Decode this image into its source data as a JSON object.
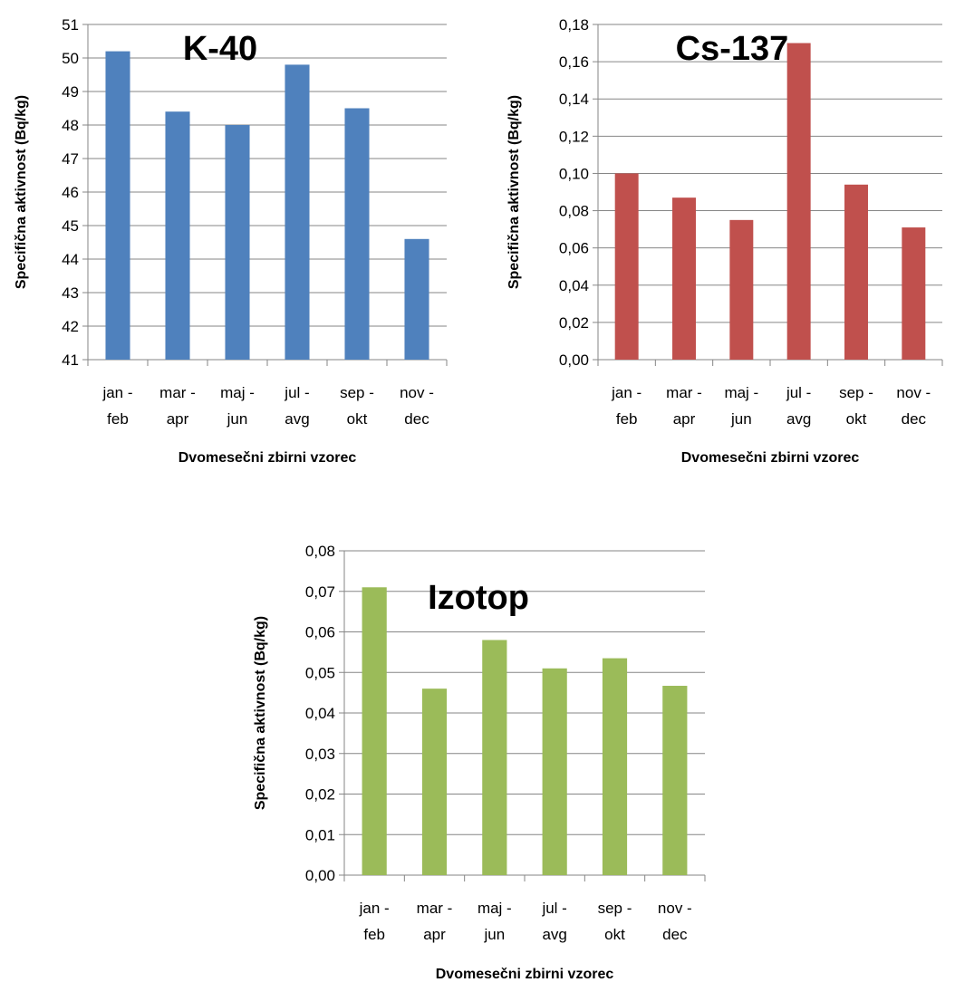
{
  "chart_data": [
    {
      "type": "bar",
      "title": "K-40",
      "xlabel": "Dvomesečni zbirni vzorec",
      "ylabel": "Specifična aktivnost  (Bq/kg)",
      "categories": [
        [
          "jan -",
          "feb"
        ],
        [
          "mar -",
          "apr"
        ],
        [
          "maj -",
          "jun"
        ],
        [
          "jul -",
          "avg"
        ],
        [
          "sep -",
          "okt"
        ],
        [
          "nov -",
          "dec"
        ]
      ],
      "values": [
        50.2,
        48.4,
        48.0,
        49.8,
        48.5,
        44.6
      ],
      "ylim": [
        41,
        51
      ],
      "yticks": [
        "41",
        "42",
        "43",
        "44",
        "45",
        "46",
        "47",
        "48",
        "49",
        "50",
        "51"
      ],
      "grid": true,
      "color": "#4f81bd"
    },
    {
      "type": "bar",
      "title": "Cs-137",
      "xlabel": "Dvomesečni zbirni vzorec",
      "ylabel": "Specifična aktivnost  (Bq/kg)",
      "categories": [
        [
          "jan -",
          "feb"
        ],
        [
          "mar -",
          "apr"
        ],
        [
          "maj -",
          "jun"
        ],
        [
          "jul -",
          "avg"
        ],
        [
          "sep -",
          "okt"
        ],
        [
          "nov -",
          "dec"
        ]
      ],
      "values": [
        0.1,
        0.087,
        0.075,
        0.17,
        0.094,
        0.071
      ],
      "ylim": [
        0,
        0.18
      ],
      "yticks": [
        "0,00",
        "0,02",
        "0,04",
        "0,06",
        "0,08",
        "0,10",
        "0,12",
        "0,14",
        "0,16",
        "0,18"
      ],
      "grid": true,
      "color": "#c0504d"
    },
    {
      "type": "bar",
      "title": "Izotop",
      "xlabel": "Dvomesečni zbirni vzorec",
      "ylabel": "Specifična aktivnost  (Bq/kg)",
      "categories": [
        [
          "jan -",
          "feb"
        ],
        [
          "mar -",
          "apr"
        ],
        [
          "maj -",
          "jun"
        ],
        [
          "jul -",
          "avg"
        ],
        [
          "sep -",
          "okt"
        ],
        [
          "nov -",
          "dec"
        ]
      ],
      "values": [
        0.071,
        0.046,
        0.058,
        0.051,
        0.0535,
        0.0467
      ],
      "ylim": [
        0,
        0.08
      ],
      "yticks": [
        "0,00",
        "0,01",
        "0,02",
        "0,03",
        "0,04",
        "0,05",
        "0,06",
        "0,07",
        "0,08"
      ],
      "grid": true,
      "color": "#9bbb59"
    }
  ]
}
